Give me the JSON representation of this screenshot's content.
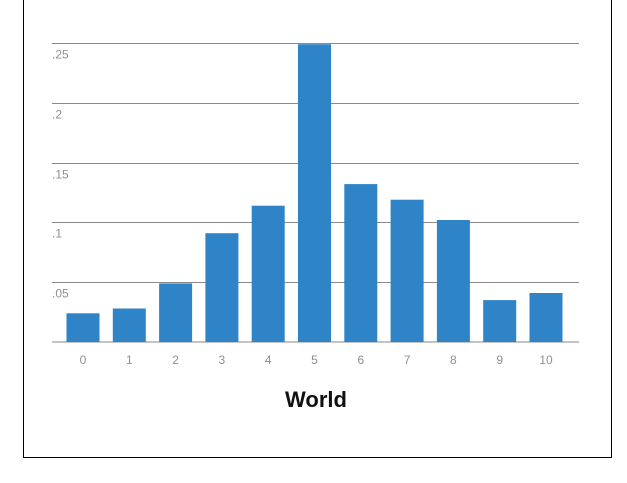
{
  "chart_data": {
    "type": "bar",
    "title": "",
    "xlabel": "World",
    "ylabel": "",
    "categories": [
      "0",
      "1",
      "2",
      "3",
      "4",
      "5",
      "6",
      "7",
      "8",
      "9",
      "10"
    ],
    "values": [
      0.024,
      0.028,
      0.049,
      0.091,
      0.114,
      0.249,
      0.132,
      0.119,
      0.102,
      0.035,
      0.041
    ],
    "ylim": [
      0,
      0.25
    ],
    "yticks": [
      0.05,
      0.1,
      0.15,
      0.2,
      0.25
    ],
    "ytick_labels": [
      ".05",
      ".1",
      ".15",
      ".2",
      ".25"
    ],
    "grid": true,
    "legend": "none",
    "bar_color": "#2f84c8",
    "grid_color": "#8a8a8a",
    "tick_color": "#8f8f8f"
  }
}
